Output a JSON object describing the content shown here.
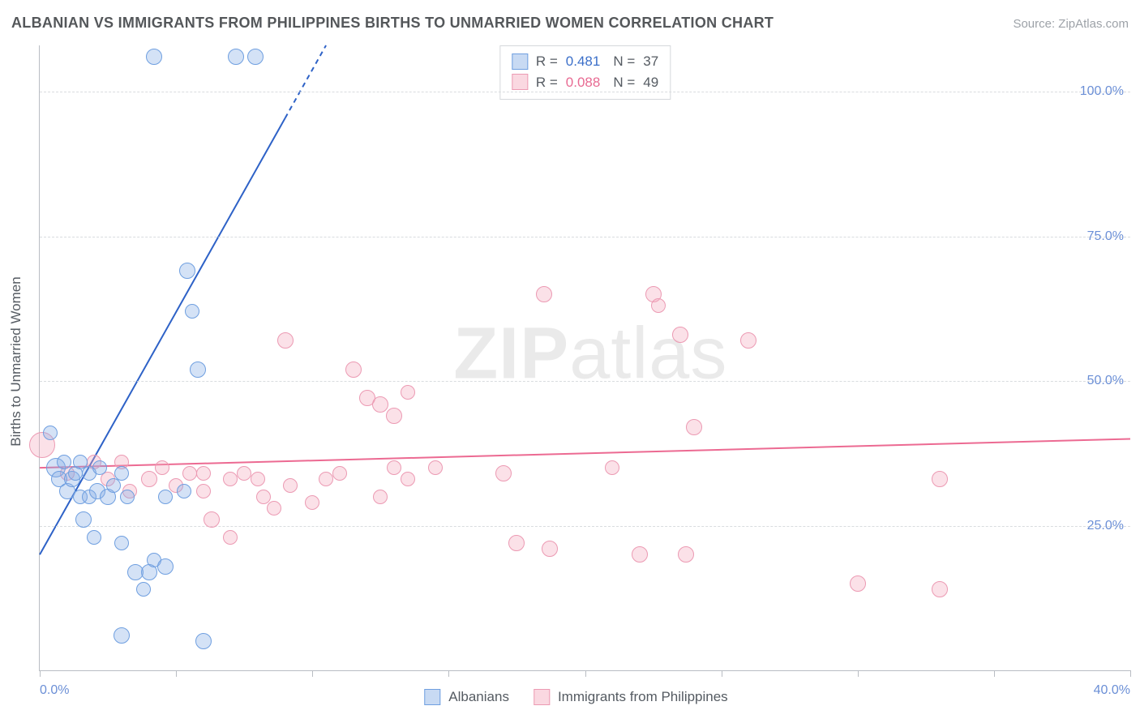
{
  "title": "ALBANIAN VS IMMIGRANTS FROM PHILIPPINES BIRTHS TO UNMARRIED WOMEN CORRELATION CHART",
  "source": "Source: ZipAtlas.com",
  "watermark_prefix": "ZIP",
  "watermark_suffix": "atlas",
  "ylabel": "Births to Unmarried Women",
  "chart": {
    "type": "scatter",
    "xlim": [
      0,
      40
    ],
    "ylim": [
      0,
      108
    ],
    "x_ticks": [
      0,
      5,
      10,
      15,
      20,
      25,
      30,
      35,
      40
    ],
    "x_tick_labels_shown": {
      "0": "0.0%",
      "40": "40.0%"
    },
    "y_gridlines": [
      25,
      50,
      75,
      100
    ],
    "y_tick_labels": {
      "25": "25.0%",
      "50": "50.0%",
      "75": "75.0%",
      "100": "100.0%"
    },
    "background_color": "#ffffff",
    "grid_color": "#d9dcdf",
    "axis_color": "#b9bdc3",
    "tick_label_color": "#6b8fd6",
    "marker_radius": 9,
    "series": {
      "a": {
        "label": "Albanians",
        "fill_color": "rgba(133,172,229,0.35)",
        "stroke_color": "#6f9fe0",
        "R": "0.481",
        "N": "37",
        "trend": {
          "x1": 0,
          "y1": 20,
          "x2": 10.5,
          "y2": 108,
          "color": "#2e62c7",
          "width": 2,
          "dash_after_x": 9
        },
        "points": [
          {
            "x": 4.2,
            "y": 106,
            "r": 10
          },
          {
            "x": 7.2,
            "y": 106,
            "r": 10
          },
          {
            "x": 7.9,
            "y": 106,
            "r": 10
          },
          {
            "x": 5.4,
            "y": 69,
            "r": 10
          },
          {
            "x": 5.6,
            "y": 62,
            "r": 9
          },
          {
            "x": 5.8,
            "y": 52,
            "r": 10
          },
          {
            "x": 0.4,
            "y": 41,
            "r": 9
          },
          {
            "x": 0.6,
            "y": 35,
            "r": 12
          },
          {
            "x": 0.7,
            "y": 33,
            "r": 10
          },
          {
            "x": 0.9,
            "y": 36,
            "r": 9
          },
          {
            "x": 1.0,
            "y": 31,
            "r": 10
          },
          {
            "x": 1.2,
            "y": 33,
            "r": 10
          },
          {
            "x": 1.3,
            "y": 34,
            "r": 9
          },
          {
            "x": 1.5,
            "y": 30,
            "r": 9
          },
          {
            "x": 1.5,
            "y": 36,
            "r": 9
          },
          {
            "x": 1.8,
            "y": 30,
            "r": 9
          },
          {
            "x": 1.8,
            "y": 34,
            "r": 9
          },
          {
            "x": 2.1,
            "y": 31,
            "r": 10
          },
          {
            "x": 2.2,
            "y": 35,
            "r": 9
          },
          {
            "x": 2.5,
            "y": 30,
            "r": 10
          },
          {
            "x": 2.7,
            "y": 32,
            "r": 9
          },
          {
            "x": 3.2,
            "y": 30,
            "r": 9
          },
          {
            "x": 3.0,
            "y": 34,
            "r": 9
          },
          {
            "x": 1.6,
            "y": 26,
            "r": 10
          },
          {
            "x": 2.0,
            "y": 23,
            "r": 9
          },
          {
            "x": 3.0,
            "y": 22,
            "r": 9
          },
          {
            "x": 3.5,
            "y": 17,
            "r": 10
          },
          {
            "x": 3.8,
            "y": 14,
            "r": 9
          },
          {
            "x": 4.0,
            "y": 17,
            "r": 10
          },
          {
            "x": 4.2,
            "y": 19,
            "r": 9
          },
          {
            "x": 4.6,
            "y": 18,
            "r": 10
          },
          {
            "x": 4.6,
            "y": 30,
            "r": 9
          },
          {
            "x": 5.3,
            "y": 31,
            "r": 9
          },
          {
            "x": 3.0,
            "y": 6,
            "r": 10
          },
          {
            "x": 6.0,
            "y": 5,
            "r": 10
          }
        ]
      },
      "b": {
        "label": "Immigrants from Philippines",
        "fill_color": "rgba(244,168,189,0.35)",
        "stroke_color": "#ec9ab3",
        "R": "0.088",
        "N": "49",
        "trend": {
          "x1": 0,
          "y1": 35,
          "x2": 40,
          "y2": 40,
          "color": "#ec6a92",
          "width": 2
        },
        "points": [
          {
            "x": 0.1,
            "y": 39,
            "r": 16
          },
          {
            "x": 1.0,
            "y": 34,
            "r": 9
          },
          {
            "x": 2.0,
            "y": 36,
            "r": 9
          },
          {
            "x": 2.5,
            "y": 33,
            "r": 9
          },
          {
            "x": 3.0,
            "y": 36,
            "r": 9
          },
          {
            "x": 3.3,
            "y": 31,
            "r": 9
          },
          {
            "x": 4.0,
            "y": 33,
            "r": 10
          },
          {
            "x": 4.5,
            "y": 35,
            "r": 9
          },
          {
            "x": 5.0,
            "y": 32,
            "r": 9
          },
          {
            "x": 5.5,
            "y": 34,
            "r": 9
          },
          {
            "x": 6.0,
            "y": 31,
            "r": 9
          },
          {
            "x": 6.0,
            "y": 34,
            "r": 9
          },
          {
            "x": 6.3,
            "y": 26,
            "r": 10
          },
          {
            "x": 7.0,
            "y": 33,
            "r": 9
          },
          {
            "x": 7.0,
            "y": 23,
            "r": 9
          },
          {
            "x": 7.5,
            "y": 34,
            "r": 9
          },
          {
            "x": 8.0,
            "y": 33,
            "r": 9
          },
          {
            "x": 8.2,
            "y": 30,
            "r": 9
          },
          {
            "x": 8.6,
            "y": 28,
            "r": 9
          },
          {
            "x": 9.0,
            "y": 57,
            "r": 10
          },
          {
            "x": 9.2,
            "y": 32,
            "r": 9
          },
          {
            "x": 10.0,
            "y": 29,
            "r": 9
          },
          {
            "x": 10.5,
            "y": 33,
            "r": 9
          },
          {
            "x": 11.0,
            "y": 34,
            "r": 9
          },
          {
            "x": 11.5,
            "y": 52,
            "r": 10
          },
          {
            "x": 12.0,
            "y": 47,
            "r": 10
          },
          {
            "x": 12.5,
            "y": 46,
            "r": 10
          },
          {
            "x": 12.5,
            "y": 30,
            "r": 9
          },
          {
            "x": 13.0,
            "y": 44,
            "r": 10
          },
          {
            "x": 13.0,
            "y": 35,
            "r": 9
          },
          {
            "x": 13.5,
            "y": 33,
            "r": 9
          },
          {
            "x": 13.5,
            "y": 48,
            "r": 9
          },
          {
            "x": 14.5,
            "y": 35,
            "r": 9
          },
          {
            "x": 17.0,
            "y": 34,
            "r": 10
          },
          {
            "x": 17.5,
            "y": 22,
            "r": 10
          },
          {
            "x": 18.5,
            "y": 65,
            "r": 10
          },
          {
            "x": 18.7,
            "y": 21,
            "r": 10
          },
          {
            "x": 21.0,
            "y": 35,
            "r": 9
          },
          {
            "x": 22.0,
            "y": 20,
            "r": 10
          },
          {
            "x": 22.5,
            "y": 65,
            "r": 10
          },
          {
            "x": 22.7,
            "y": 63,
            "r": 9
          },
          {
            "x": 23.5,
            "y": 58,
            "r": 10
          },
          {
            "x": 23.7,
            "y": 20,
            "r": 10
          },
          {
            "x": 24.0,
            "y": 42,
            "r": 10
          },
          {
            "x": 26.0,
            "y": 57,
            "r": 10
          },
          {
            "x": 30.0,
            "y": 15,
            "r": 10
          },
          {
            "x": 33.0,
            "y": 33,
            "r": 10
          },
          {
            "x": 33.0,
            "y": 14,
            "r": 10
          }
        ]
      }
    }
  },
  "legend_top": {
    "r_prefix": "R  = ",
    "n_prefix": "N  = "
  }
}
